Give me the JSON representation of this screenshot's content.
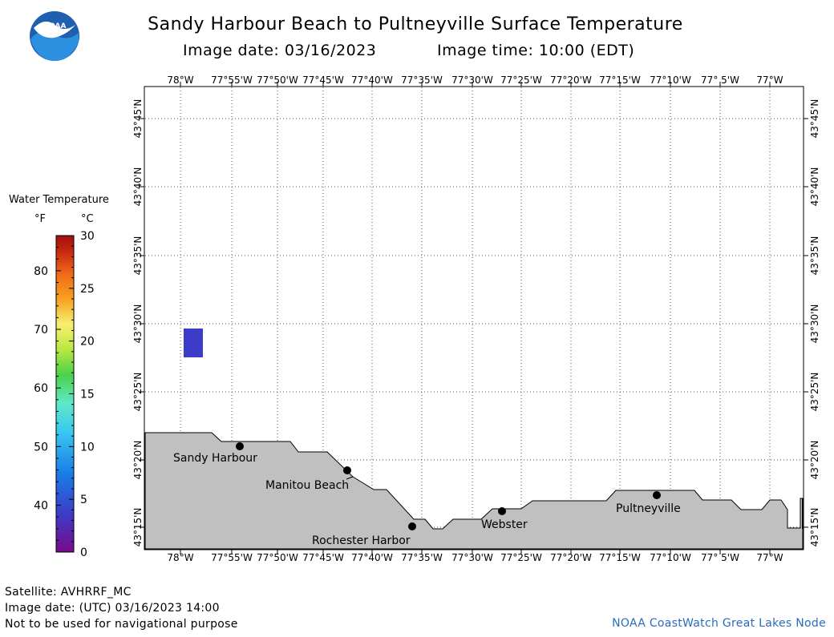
{
  "header": {
    "title": "Sandy Harbour Beach to Pultneyville Surface Temperature",
    "image_date": "Image date: 03/16/2023",
    "image_time": "Image time: 10:00 (EDT)"
  },
  "logo": {
    "text": "NOAA",
    "color": "#1f5fb0"
  },
  "legend": {
    "title": "Water Temperature",
    "unit_f": "°F",
    "unit_c": "°C",
    "f_ticks": [
      "80",
      "70",
      "60",
      "50",
      "40"
    ],
    "c_ticks": [
      "30",
      "25",
      "20",
      "15",
      "10",
      "5",
      "0"
    ]
  },
  "axes": {
    "lon_labels": [
      "78°W",
      "77°55'W",
      "77°50'W",
      "77°45'W",
      "77°40'W",
      "77°35'W",
      "77°30'W",
      "77°25'W",
      "77°20'W",
      "77°15'W",
      "77°10'W",
      "77° 5'W",
      "77°W"
    ],
    "lat_labels": [
      "43°45'N",
      "43°40'N",
      "43°35'N",
      "43°30'N",
      "43°25'N",
      "43°20'N",
      "43°15'N"
    ]
  },
  "places": [
    {
      "name": "Sandy Harbour"
    },
    {
      "name": "Manitou Beach"
    },
    {
      "name": "Rochester Harbor"
    },
    {
      "name": "Webster"
    },
    {
      "name": "Pultneyville"
    }
  ],
  "colors": {
    "land": "#c0c0c0",
    "water_patch": "#3c3cc8",
    "grid": "#555555"
  },
  "footer": {
    "satellite": "Satellite: AVHRRF_MC",
    "utc_date": "Image date: (UTC) 03/16/2023  14:00",
    "disclaimer": "Not to be used for navigational purpose",
    "credit": "NOAA CoastWatch Great Lakes Node"
  }
}
